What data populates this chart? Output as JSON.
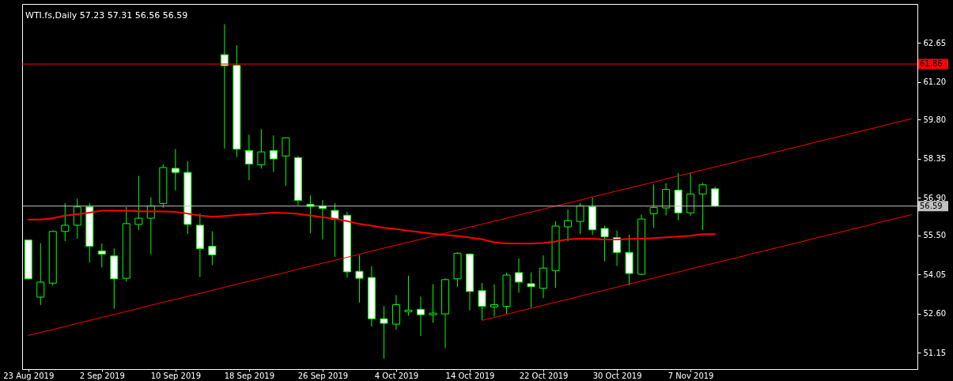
{
  "chart_data": {
    "type": "candlestick",
    "title": "WTI.fs,Daily 57.23 57.31 56.56 56.59",
    "categories": [
      "23 Aug 2019",
      null,
      null,
      null,
      null,
      null,
      "2 Sep 2019",
      null,
      null,
      null,
      null,
      null,
      "10 Sep 2019",
      null,
      null,
      null,
      null,
      null,
      "18 Sep 2019",
      null,
      null,
      null,
      null,
      null,
      "26 Sep 2019",
      null,
      null,
      null,
      null,
      null,
      "4 Oct 2019",
      null,
      null,
      null,
      null,
      null,
      "14 Oct 2019",
      null,
      null,
      null,
      null,
      null,
      "22 Oct 2019",
      null,
      null,
      null,
      null,
      null,
      "30 Oct 2019",
      null,
      null,
      null,
      null,
      null,
      "7 Nov 2019",
      null,
      null,
      null,
      null,
      null,
      null,
      null,
      null,
      null,
      null,
      null,
      null,
      null,
      null,
      null,
      null,
      null,
      null
    ],
    "ylim": [
      50.54,
      64.09
    ],
    "yticks": [
      51.15,
      {
        "value": 52.6,
        "label": "52.60"
      },
      54.05,
      {
        "value": 55.5,
        "label": "55.50"
      },
      {
        "value": 56.9,
        "label": "56.90"
      },
      58.35,
      {
        "value": 59.8,
        "label": "59.80"
      },
      {
        "value": 61.2,
        "label": "61.20"
      },
      62.65
    ],
    "ref_lines": [
      {
        "axis": "y",
        "value": 61.86,
        "label": "61.86",
        "color": "#ff0000"
      },
      {
        "axis": "y",
        "value": 56.59,
        "label": "56.59",
        "color": "#c0c0c0"
      }
    ],
    "series": [
      {
        "color": "#00ff00",
        "ohlc": [
          [
            55.33,
            55.33,
            53.89,
            53.89
          ],
          [
            53.21,
            55.21,
            52.92,
            53.77
          ],
          [
            53.73,
            55.69,
            53.64,
            55.65
          ],
          [
            55.65,
            56.7,
            55.29,
            55.88
          ],
          [
            55.88,
            56.87,
            55.38,
            56.56
          ],
          [
            56.56,
            56.7,
            54.5,
            55.1
          ],
          [
            54.92,
            55.2,
            54.31,
            54.81
          ],
          [
            54.74,
            55.02,
            52.78,
            53.89
          ],
          [
            53.91,
            56.55,
            53.79,
            55.94
          ],
          [
            55.91,
            57.71,
            55.7,
            56.14
          ],
          [
            56.14,
            56.92,
            54.8,
            56.6
          ],
          [
            56.69,
            58.14,
            56.53,
            58.02
          ],
          [
            57.99,
            58.71,
            57.17,
            57.84
          ],
          [
            57.84,
            58.26,
            55.55,
            55.91
          ],
          [
            55.88,
            56.32,
            53.96,
            55.01
          ],
          [
            55.1,
            55.66,
            54.4,
            54.78
          ],
          [
            62.21,
            63.34,
            58.72,
            61.8
          ],
          [
            61.81,
            62.56,
            58.41,
            58.7
          ],
          [
            58.65,
            59.24,
            57.55,
            58.15
          ],
          [
            58.12,
            59.44,
            57.98,
            58.6
          ],
          [
            58.65,
            59.21,
            57.86,
            58.34
          ],
          [
            58.45,
            59.12,
            57.34,
            59.12
          ],
          [
            58.39,
            58.45,
            56.62,
            56.8
          ],
          [
            56.65,
            56.99,
            55.58,
            56.58
          ],
          [
            56.59,
            56.81,
            55.36,
            56.5
          ],
          [
            56.43,
            56.7,
            54.71,
            56.1
          ],
          [
            56.25,
            56.38,
            53.93,
            54.15
          ],
          [
            54.17,
            54.77,
            53.01,
            53.91
          ],
          [
            53.94,
            54.36,
            52.12,
            52.41
          ],
          [
            52.41,
            52.88,
            50.93,
            52.24
          ],
          [
            52.21,
            53.29,
            52.0,
            52.93
          ],
          [
            52.67,
            54.01,
            52.52,
            52.73
          ],
          [
            52.76,
            53.23,
            51.77,
            52.56
          ],
          [
            52.56,
            53.69,
            52.26,
            52.62
          ],
          [
            52.59,
            53.91,
            51.33,
            53.86
          ],
          [
            53.89,
            54.88,
            53.59,
            54.84
          ],
          [
            54.81,
            54.84,
            52.72,
            53.42
          ],
          [
            53.45,
            53.74,
            52.36,
            52.87
          ],
          [
            52.85,
            53.69,
            52.49,
            52.93
          ],
          [
            52.87,
            54.12,
            52.59,
            54.03
          ],
          [
            54.12,
            54.65,
            53.38,
            53.77
          ],
          [
            53.71,
            54.13,
            52.82,
            53.6
          ],
          [
            53.54,
            54.76,
            53.18,
            54.29
          ],
          [
            54.2,
            56.03,
            53.56,
            55.85
          ],
          [
            55.82,
            56.47,
            55.28,
            56.05
          ],
          [
            56.02,
            56.7,
            55.55,
            56.6
          ],
          [
            56.57,
            56.91,
            55.52,
            55.71
          ],
          [
            55.76,
            55.86,
            54.54,
            55.45
          ],
          [
            55.42,
            55.68,
            54.37,
            54.87
          ],
          [
            54.87,
            55.53,
            53.65,
            54.09
          ],
          [
            54.06,
            56.28,
            54.03,
            56.11
          ],
          [
            56.31,
            57.39,
            55.78,
            56.54
          ],
          [
            56.52,
            57.44,
            56.24,
            57.21
          ],
          [
            57.18,
            57.82,
            56.07,
            56.34
          ],
          [
            56.34,
            57.81,
            56.22,
            57.04
          ],
          [
            57.04,
            57.45,
            55.7,
            57.38
          ],
          [
            57.23,
            57.31,
            56.56,
            56.59
          ],
          null,
          null,
          null,
          null,
          null,
          null,
          null,
          null,
          null,
          null,
          null,
          null,
          null,
          null,
          null,
          null
        ],
        "colors": [
          "#ffffff",
          "#000000",
          "#000000",
          "#000000",
          "#000000",
          "#ffffff",
          "#ffffff",
          "#ffffff",
          "#000000",
          "#000000",
          "#000000",
          "#000000",
          "#ffffff",
          "#ffffff",
          "#ffffff",
          "#ffffff",
          "#ffffff",
          "#ffffff",
          "#ffffff",
          "#000000",
          "#ffffff",
          "#000000",
          "#ffffff",
          "#ffffff",
          "#ffffff",
          "#ffffff",
          "#ffffff",
          "#ffffff",
          "#ffffff",
          "#ffffff",
          "#000000",
          "#000000",
          "#ffffff",
          "#000000",
          "#000000",
          "#000000",
          "#ffffff",
          "#ffffff",
          "#000000",
          "#000000",
          "#ffffff",
          "#ffffff",
          "#000000",
          "#000000",
          "#000000",
          "#000000",
          "#ffffff",
          "#ffffff",
          "#ffffff",
          "#ffffff",
          "#000000",
          "#000000",
          "#000000",
          "#ffffff",
          "#000000",
          "#000000",
          "#ffffff",
          null,
          null,
          null,
          null,
          null,
          null,
          null,
          null,
          null,
          null,
          null,
          null,
          null,
          null,
          null,
          null
        ]
      },
      {
        "type": "line",
        "color": "#ff0000",
        "values": [
          56.09,
          56.09,
          56.14,
          56.24,
          56.29,
          56.35,
          56.42,
          56.42,
          56.42,
          56.4,
          56.39,
          56.39,
          56.38,
          56.31,
          56.24,
          56.19,
          56.22,
          56.26,
          56.29,
          56.31,
          56.35,
          56.33,
          56.3,
          56.24,
          56.18,
          56.12,
          56.03,
          55.93,
          55.86,
          55.78,
          55.74,
          55.67,
          55.62,
          55.56,
          55.52,
          55.48,
          55.42,
          55.36,
          55.25,
          55.2,
          55.2,
          55.2,
          55.22,
          55.28,
          55.36,
          55.38,
          55.38,
          55.35,
          55.35,
          55.37,
          55.38,
          55.4,
          55.43,
          55.46,
          55.49,
          55.55,
          55.55,
          null,
          null,
          null,
          null,
          null,
          null,
          null,
          null,
          null,
          null,
          null,
          null,
          null,
          null,
          null,
          null
        ]
      },
      {
        "type": "line",
        "color": "#ff0000",
        "values": [
          51.79,
          51.9,
          52.01,
          52.12,
          52.24,
          52.35,
          52.46,
          52.57,
          52.68,
          52.79,
          52.91,
          53.02,
          53.13,
          53.24,
          53.35,
          53.46,
          53.58,
          53.69,
          53.8,
          53.91,
          54.02,
          54.13,
          54.25,
          54.36,
          54.47,
          54.58,
          54.69,
          54.8,
          54.92,
          55.03,
          55.14,
          55.25,
          55.36,
          55.47,
          55.59,
          55.7,
          55.81,
          55.92,
          56.03,
          56.14,
          56.26,
          56.37,
          56.48,
          56.59,
          56.7,
          56.81,
          56.93,
          57.04,
          57.15,
          57.26,
          57.37,
          57.48,
          57.6,
          57.71,
          57.82,
          57.93,
          58.04,
          58.15,
          58.27,
          58.38,
          58.49,
          58.6,
          58.71,
          58.82,
          58.94,
          59.05,
          59.16,
          59.27,
          59.38,
          59.49,
          59.61,
          59.72,
          59.83
        ]
      },
      {
        "type": "line",
        "color": "#ff0000",
        "values": [
          null,
          null,
          null,
          null,
          null,
          null,
          null,
          null,
          null,
          null,
          null,
          null,
          null,
          null,
          null,
          null,
          null,
          null,
          null,
          null,
          null,
          null,
          null,
          null,
          null,
          null,
          null,
          null,
          null,
          null,
          null,
          null,
          null,
          null,
          null,
          null,
          null,
          52.35,
          52.46,
          52.57,
          52.69,
          52.8,
          52.91,
          53.02,
          53.13,
          53.25,
          53.36,
          53.47,
          53.58,
          53.7,
          53.81,
          53.92,
          54.03,
          54.14,
          54.26,
          54.37,
          54.48,
          54.59,
          54.7,
          54.82,
          54.93,
          55.04,
          55.15,
          55.26,
          55.38,
          55.49,
          55.6,
          55.71,
          55.82,
          55.94,
          56.05,
          56.16,
          56.27
        ]
      }
    ]
  }
}
